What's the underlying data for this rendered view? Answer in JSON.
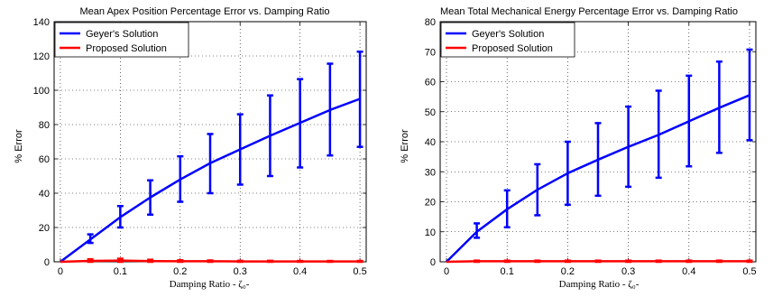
{
  "chart_data": [
    {
      "type": "line",
      "title": "Mean  Apex Position Percentage Error vs. Damping Ratio",
      "xlabel": "Damping Ratio - ζ₀-",
      "ylabel": "% Error",
      "xlim": [
        0,
        0.5
      ],
      "ylim": [
        0,
        140
      ],
      "xticks": [
        "0",
        "0.1",
        "0.2",
        "0.3",
        "0.4",
        "0.5"
      ],
      "yticks": [
        "0",
        "20",
        "40",
        "60",
        "80",
        "100",
        "120",
        "140"
      ],
      "grid": true,
      "legend_position": "top-left",
      "x": [
        0,
        0.05,
        0.1,
        0.15,
        0.2,
        0.25,
        0.3,
        0.35,
        0.4,
        0.45,
        0.5
      ],
      "series": [
        {
          "name": "Geyer's Solution",
          "color": "#0000ff",
          "values": [
            0,
            13,
            26,
            37.5,
            48,
            57.5,
            65.5,
            73.5,
            81,
            88.5,
            95
          ],
          "err_low": [
            0,
            11,
            20,
            27.5,
            35,
            40,
            45,
            50,
            55,
            62,
            67
          ],
          "err_high": [
            0,
            16,
            32.5,
            47.5,
            61.5,
            74.5,
            86,
            97,
            106.5,
            115.5,
            122.5
          ]
        },
        {
          "name": "Proposed Solution",
          "color": "#ff0000",
          "values": [
            0,
            0.5,
            0.7,
            0.4,
            0.3,
            0.3,
            0.2,
            0.2,
            0.2,
            0.2,
            0.2
          ],
          "err_low": [
            0,
            0,
            0,
            0,
            0,
            0,
            0,
            0,
            0,
            0,
            0
          ],
          "err_high": [
            0,
            1.5,
            1.8,
            1.2,
            0.9,
            0.8,
            0.6,
            0.6,
            0.5,
            0.5,
            0.5
          ]
        }
      ]
    },
    {
      "type": "line",
      "title": "Mean Total Mechanical Energy Percentage Error vs. Damping Ratio",
      "xlabel": "Damping Ratio - ζ₀-",
      "ylabel": "% Error",
      "xlim": [
        0,
        0.5
      ],
      "ylim": [
        0,
        80
      ],
      "xticks": [
        "0",
        "0.1",
        "0.2",
        "0.3",
        "0.4",
        "0.5"
      ],
      "yticks": [
        "0",
        "10",
        "20",
        "30",
        "40",
        "50",
        "60",
        "70",
        "80"
      ],
      "grid": true,
      "legend_position": "top-left",
      "x": [
        0,
        0.05,
        0.1,
        0.15,
        0.2,
        0.25,
        0.3,
        0.35,
        0.4,
        0.45,
        0.5
      ],
      "series": [
        {
          "name": "Geyer's Solution",
          "color": "#0000ff",
          "values": [
            0,
            10,
            17.5,
            24,
            29.5,
            34,
            38.3,
            42.3,
            46.8,
            51.3,
            55.5
          ],
          "err_low": [
            0,
            8,
            11.5,
            15.5,
            19,
            22,
            25,
            28,
            31.8,
            36.3,
            40.5
          ],
          "err_high": [
            0,
            12.8,
            23.8,
            32.5,
            40,
            46.2,
            51.7,
            57,
            62,
            66.7,
            70.7
          ]
        },
        {
          "name": "Proposed Solution",
          "color": "#ff0000",
          "values": [
            0,
            0.2,
            0.2,
            0.2,
            0.2,
            0.2,
            0.2,
            0.2,
            0.2,
            0.2,
            0.2
          ],
          "err_low": [
            0,
            0,
            0,
            0,
            0,
            0,
            0,
            0,
            0,
            0,
            0
          ],
          "err_high": [
            0,
            0.4,
            0.4,
            0.4,
            0.4,
            0.4,
            0.4,
            0.4,
            0.4,
            0.4,
            0.4
          ]
        }
      ]
    }
  ]
}
